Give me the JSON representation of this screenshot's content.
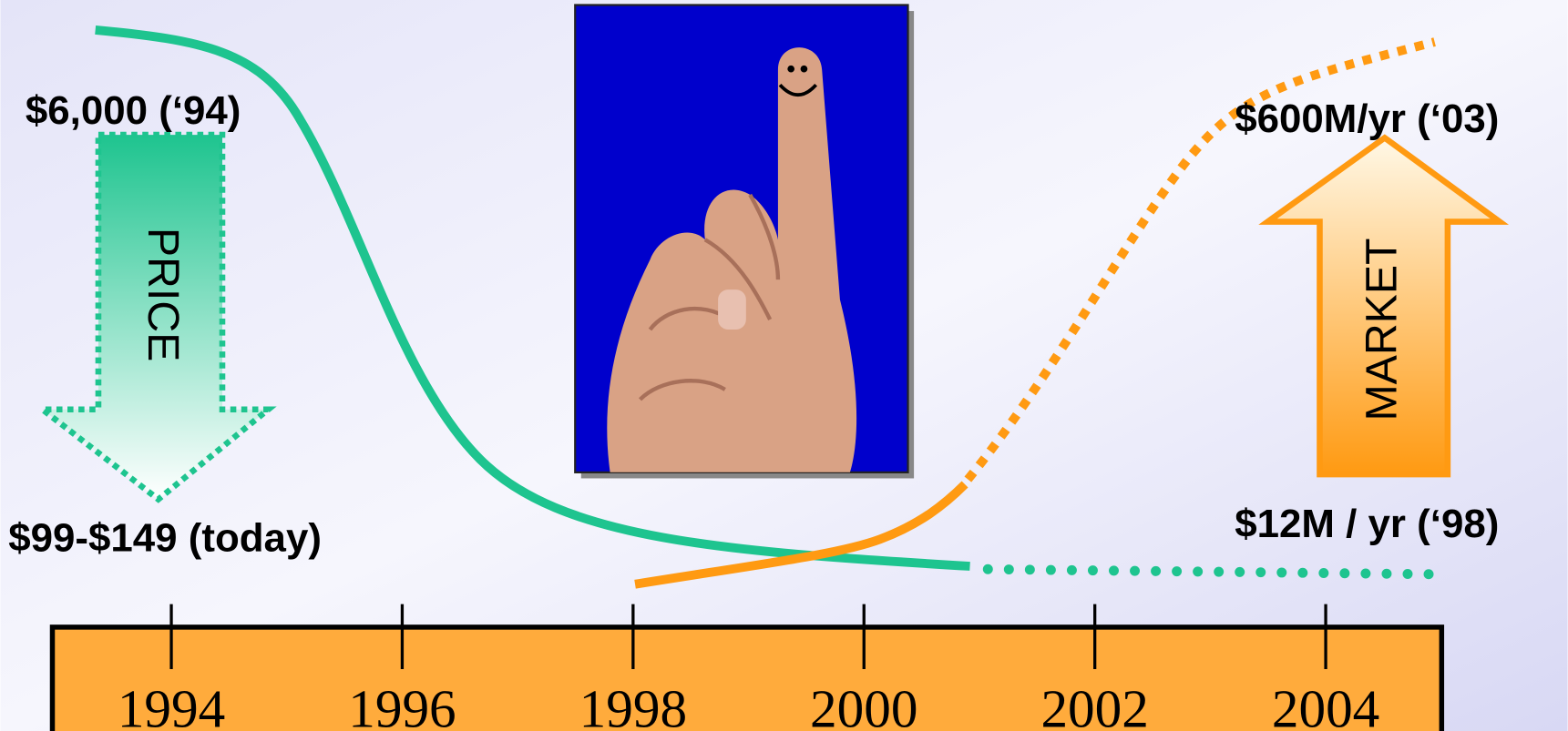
{
  "labels": {
    "price_start": "$6,000 (‘94)",
    "price_now": "$99-$149 (today)",
    "market_end": "$600M/yr (‘03)",
    "market_start": "$12M / yr (‘98)"
  },
  "arrows": {
    "price": "PRICE",
    "market": "MARKET"
  },
  "timeline": {
    "years": [
      "1994",
      "1996",
      "1998",
      "2000",
      "2002",
      "2004"
    ]
  }
}
